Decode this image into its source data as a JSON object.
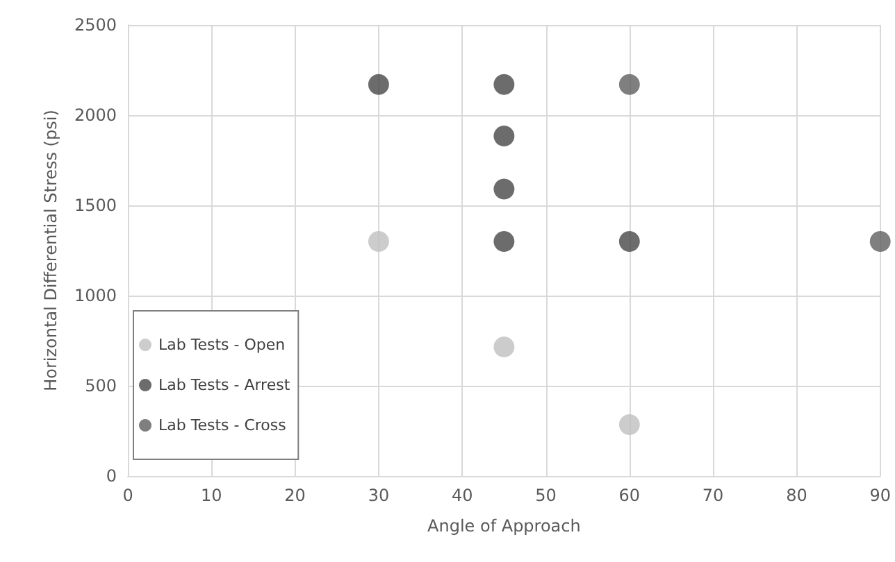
{
  "chart_data": {
    "type": "scatter",
    "xlabel": "Angle of Approach",
    "ylabel": "Horizontal Differential Stress (psi)",
    "xlim": [
      0,
      90
    ],
    "xticks": [
      0,
      10,
      20,
      30,
      40,
      50,
      60,
      70,
      80,
      90
    ],
    "ylim": [
      0,
      2500
    ],
    "yticks": [
      0,
      500,
      1000,
      1500,
      2000,
      2500
    ],
    "grid": true,
    "legend": "left",
    "marker": "circle",
    "series": [
      {
        "name": "Lab Tests - Open",
        "color": "#bfbfbf",
        "x": [
          30,
          45,
          60
        ],
        "values": [
          1300,
          715,
          285
        ]
      },
      {
        "name": "Lab Tests - Arrest",
        "color": "#474747",
        "x": [
          30,
          45,
          45,
          45,
          45,
          60
        ],
        "values": [
          2170,
          2170,
          1885,
          1590,
          1300,
          1300
        ]
      },
      {
        "name": "Lab Tests - Cross",
        "color": "#5f5f5f",
        "x": [
          60,
          90
        ],
        "values": [
          2170,
          1300
        ]
      }
    ]
  }
}
